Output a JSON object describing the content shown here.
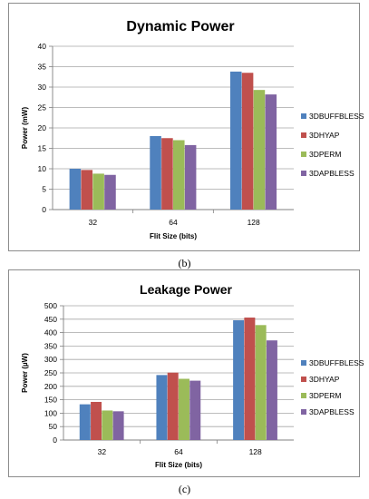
{
  "chart_data": [
    {
      "type": "bar",
      "title": "Dynamic Power",
      "xlabel": "Flit Size  (bits)",
      "ylabel": "Power (mW)",
      "categories": [
        "32",
        "64",
        "128"
      ],
      "ylim": [
        0,
        40
      ],
      "yticks": [
        0,
        5,
        10,
        15,
        20,
        25,
        30,
        35,
        40
      ],
      "grid": true,
      "legend_position": "right",
      "series": [
        {
          "name": "3DBUFFBLESS",
          "color": "#4f81bd",
          "values": [
            10.0,
            18.0,
            33.8
          ]
        },
        {
          "name": "3DHYAP",
          "color": "#c0504d",
          "values": [
            9.7,
            17.5,
            33.5
          ]
        },
        {
          "name": "3DPERM",
          "color": "#9bbb59",
          "values": [
            8.8,
            17.0,
            29.3
          ]
        },
        {
          "name": "3DAPBLESS",
          "color": "#8064a2",
          "values": [
            8.5,
            15.8,
            28.2
          ]
        }
      ],
      "caption": "(b)"
    },
    {
      "type": "bar",
      "title": "Leakage Power",
      "xlabel": "Flit Size  (bits)",
      "ylabel": "Power (µW)",
      "categories": [
        "32",
        "64",
        "128"
      ],
      "ylim": [
        0,
        500
      ],
      "yticks": [
        0,
        50,
        100,
        150,
        200,
        250,
        300,
        350,
        400,
        450,
        500
      ],
      "grid": true,
      "legend_position": "right",
      "series": [
        {
          "name": "3DBUFFBLESS",
          "color": "#4f81bd",
          "values": [
            133,
            242,
            446
          ]
        },
        {
          "name": "3DHYAP",
          "color": "#c0504d",
          "values": [
            142,
            251,
            456
          ]
        },
        {
          "name": "3DPERM",
          "color": "#9bbb59",
          "values": [
            110,
            228,
            428
          ]
        },
        {
          "name": "3DAPBLESS",
          "color": "#8064a2",
          "values": [
            107,
            221,
            371
          ]
        }
      ],
      "caption": "(c)"
    }
  ]
}
